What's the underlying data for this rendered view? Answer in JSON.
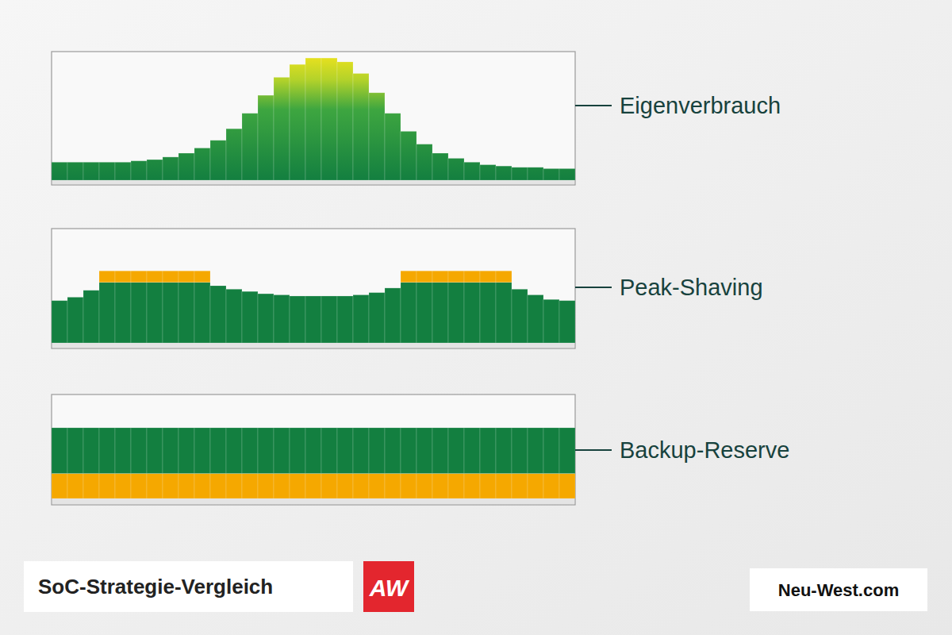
{
  "chart_data": [
    {
      "type": "bar",
      "label": "Eigenverbrauch",
      "color": "#137f40",
      "ylim": [
        0,
        100
      ],
      "tick_labels": false,
      "values": [
        14,
        14,
        14,
        14,
        14,
        15,
        16,
        18,
        21,
        25,
        31,
        40,
        52,
        66,
        80,
        90,
        95,
        95,
        92,
        83,
        68,
        52,
        38,
        28,
        21,
        17,
        14,
        12,
        11,
        10,
        10,
        9,
        9
      ]
    },
    {
      "type": "bar",
      "label": "Peak-Shaving",
      "stacked": true,
      "ylim": [
        0,
        100
      ],
      "tick_labels": false,
      "series": [
        {
          "color": "#137f40",
          "values": [
            37,
            40,
            46,
            53,
            53,
            53,
            53,
            53,
            53,
            53,
            50,
            47,
            45,
            43,
            42,
            41,
            41,
            41,
            41,
            42,
            44,
            48,
            53,
            53,
            53,
            53,
            53,
            53,
            53,
            47,
            42,
            38,
            37
          ]
        },
        {
          "color": "#f5a800",
          "values": [
            0,
            0,
            0,
            10,
            10,
            10,
            10,
            10,
            10,
            10,
            0,
            0,
            0,
            0,
            0,
            0,
            0,
            0,
            0,
            0,
            0,
            0,
            10,
            10,
            10,
            10,
            10,
            10,
            10,
            0,
            0,
            0,
            0
          ]
        }
      ]
    },
    {
      "type": "bar",
      "label": "Backup-Reserve",
      "stacked": true,
      "ylim": [
        0,
        100
      ],
      "tick_labels": false,
      "series": [
        {
          "color": "#f5a800",
          "values": [
            24,
            24,
            24,
            24,
            24,
            24,
            24,
            24,
            24,
            24,
            24,
            24,
            24,
            24,
            24,
            24,
            24,
            24,
            24,
            24,
            24,
            24,
            24,
            24,
            24,
            24,
            24,
            24,
            24,
            24,
            24,
            24,
            24
          ]
        },
        {
          "color": "#137f40",
          "values": [
            44,
            44,
            44,
            44,
            44,
            44,
            44,
            44,
            44,
            44,
            44,
            44,
            44,
            44,
            44,
            44,
            44,
            44,
            44,
            44,
            44,
            44,
            44,
            44,
            44,
            44,
            44,
            44,
            44,
            44,
            44,
            44,
            44
          ]
        }
      ]
    }
  ],
  "footer": {
    "title": "SoC-Strategie-Vergleich",
    "logo": "AW",
    "site": "Neu-West.com"
  }
}
